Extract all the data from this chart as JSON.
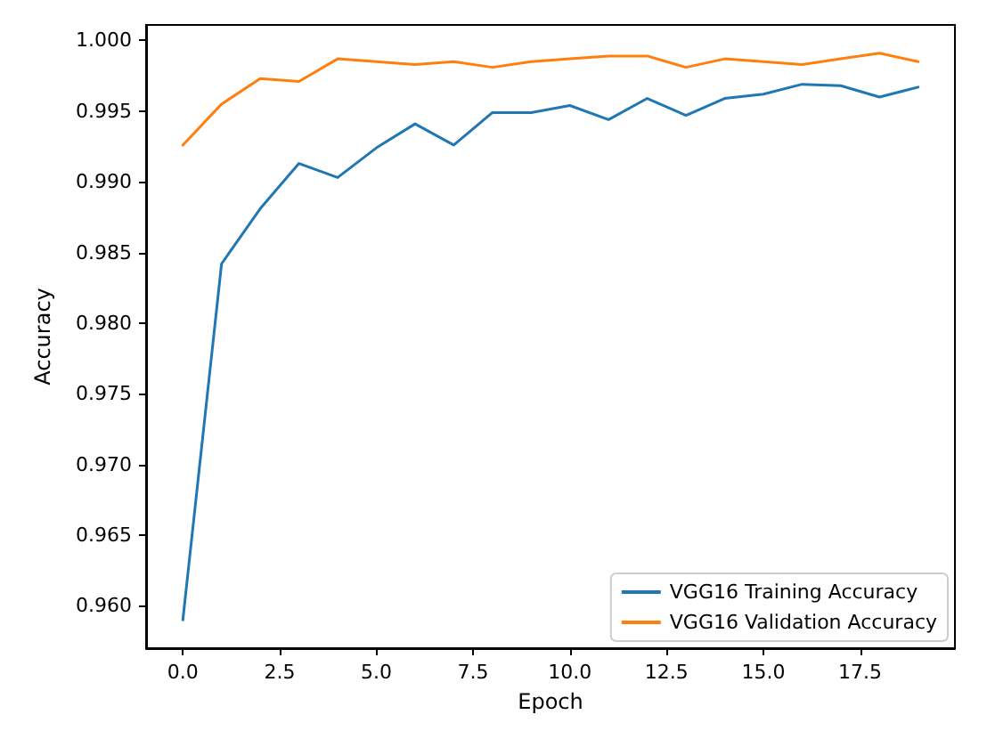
{
  "chart_data": {
    "type": "line",
    "xlabel": "Epoch",
    "ylabel": "Accuracy",
    "x": [
      0,
      1,
      2,
      3,
      4,
      5,
      6,
      7,
      8,
      9,
      10,
      11,
      12,
      13,
      14,
      15,
      16,
      17,
      18,
      19
    ],
    "series": [
      {
        "name": "VGG16 Training Accuracy",
        "color": "#1f77b4",
        "values": [
          0.959,
          0.9842,
          0.9881,
          0.9913,
          0.9903,
          0.9924,
          0.9941,
          0.9926,
          0.9949,
          0.9949,
          0.9954,
          0.9944,
          0.9959,
          0.9947,
          0.9959,
          0.9962,
          0.9969,
          0.9968,
          0.996,
          0.9967
        ]
      },
      {
        "name": "VGG16 Validation Accuracy",
        "color": "#ff7f0e",
        "values": [
          0.9926,
          0.9955,
          0.9973,
          0.9971,
          0.9987,
          0.9985,
          0.9983,
          0.9985,
          0.9981,
          0.9985,
          0.9987,
          0.9989,
          0.9989,
          0.9981,
          0.9987,
          0.9985,
          0.9983,
          0.9987,
          0.9991,
          0.9985
        ]
      }
    ],
    "xlim": [
      -0.95,
      19.95
    ],
    "xticks": [
      {
        "value": 0,
        "label": "0.0"
      },
      {
        "value": 2.5,
        "label": "2.5"
      },
      {
        "value": 5,
        "label": "5.0"
      },
      {
        "value": 7.5,
        "label": "7.5"
      },
      {
        "value": 10,
        "label": "10.0"
      },
      {
        "value": 12.5,
        "label": "12.5"
      },
      {
        "value": 15,
        "label": "15.0"
      },
      {
        "value": 17.5,
        "label": "17.5"
      }
    ],
    "ylim": [
      0.957,
      1.0011
    ],
    "yticks": [
      {
        "value": 0.96,
        "label": "0.960"
      },
      {
        "value": 0.965,
        "label": "0.965"
      },
      {
        "value": 0.97,
        "label": "0.970"
      },
      {
        "value": 0.975,
        "label": "0.975"
      },
      {
        "value": 0.98,
        "label": "0.980"
      },
      {
        "value": 0.985,
        "label": "0.985"
      },
      {
        "value": 0.99,
        "label": "0.990"
      },
      {
        "value": 0.995,
        "label": "0.995"
      },
      {
        "value": 1,
        "label": "1.000"
      }
    ],
    "grid": false,
    "legend": "bottom right",
    "marker": "none",
    "line_style": "solid"
  }
}
